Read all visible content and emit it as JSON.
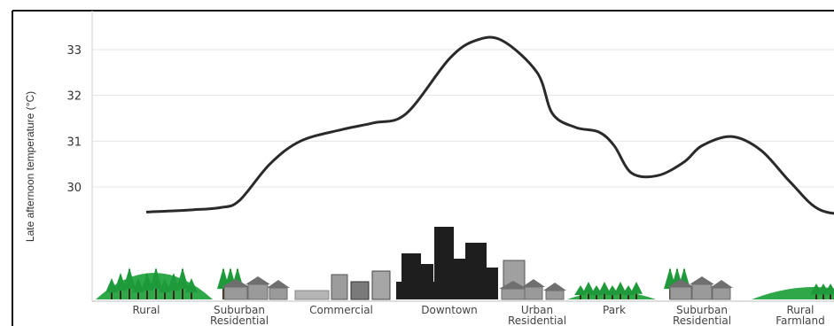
{
  "chart_data": {
    "type": "line",
    "title": "",
    "ylabel": "Late afternoon temperature (°C)",
    "ylim": [
      29.0,
      33.6
    ],
    "yticks": [
      30,
      31,
      32,
      33
    ],
    "grid": true,
    "categories": [
      {
        "lines": [
          "Rural"
        ]
      },
      {
        "lines": [
          "Suburban",
          "Residential"
        ]
      },
      {
        "lines": [
          "Commercial"
        ]
      },
      {
        "lines": [
          "Downtown"
        ]
      },
      {
        "lines": [
          "Urban",
          "Residential"
        ]
      },
      {
        "lines": [
          "Park"
        ]
      },
      {
        "lines": [
          "Suburban",
          "Residential"
        ]
      },
      {
        "lines": [
          "Rural",
          "Farmland"
        ]
      }
    ],
    "series": [
      {
        "color": "#2a2a2a",
        "x": [
          0,
          0.5,
          0.8,
          1.0,
          1.3,
          1.6,
          2.0,
          2.3,
          2.6,
          3.0,
          3.3,
          3.6,
          4.0,
          4.2,
          4.5,
          4.8,
          5.0,
          5.2,
          5.5,
          5.8,
          6.0,
          6.3,
          6.6,
          6.9,
          7.2,
          7.6,
          7.9
        ],
        "y": [
          29.45,
          29.5,
          29.55,
          29.7,
          30.5,
          31.0,
          31.25,
          31.4,
          31.6,
          32.8,
          33.2,
          33.2,
          32.5,
          31.6,
          31.3,
          31.2,
          30.9,
          30.3,
          30.25,
          30.55,
          30.9,
          31.1,
          30.8,
          30.1,
          29.5,
          29.4,
          29.4
        ]
      }
    ],
    "colors": {
      "trees": "#1f9a3a",
      "ground": "#2fa84a",
      "buildings": "#8c8c8c",
      "downtown": "#1e1e1e"
    }
  }
}
